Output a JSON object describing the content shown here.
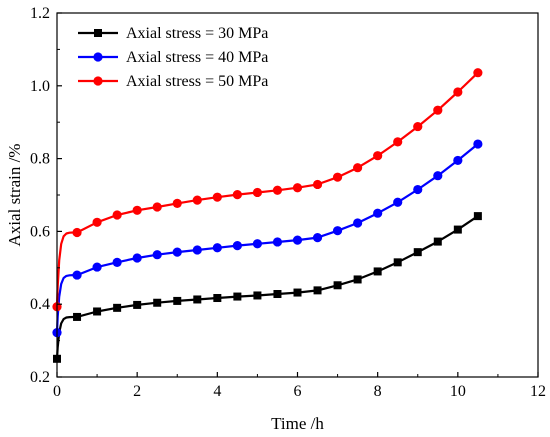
{
  "chart_data": {
    "type": "line",
    "xlabel": "Time /h",
    "ylabel": "Axial strain /%",
    "xlim": [
      0,
      12
    ],
    "ylim": [
      0.2,
      1.2
    ],
    "xticks": [
      0,
      2,
      4,
      6,
      8,
      10,
      12
    ],
    "yticks": [
      0.2,
      0.4,
      0.6,
      0.8,
      1.0,
      1.2
    ],
    "xtick_labels": [
      "0",
      "2",
      "4",
      "6",
      "8",
      "10",
      "12"
    ],
    "ytick_labels": [
      "0.2",
      "0.4",
      "0.6",
      "0.8",
      "1.0",
      "1.2"
    ],
    "grid": false,
    "legend_position": "top-left",
    "series": [
      {
        "name": "Axial stress = 30 MPa",
        "color": "#000000",
        "marker": "square",
        "x": [
          0,
          0.5,
          1,
          1.5,
          2,
          2.5,
          3,
          3.5,
          4,
          4.5,
          5,
          5.5,
          6,
          6.5,
          7,
          7.5,
          8,
          8.5,
          9,
          9.5,
          10,
          10.5
        ],
        "y": [
          0.25,
          0.365,
          0.38,
          0.39,
          0.398,
          0.404,
          0.409,
          0.413,
          0.417,
          0.421,
          0.424,
          0.428,
          0.432,
          0.438,
          0.452,
          0.468,
          0.49,
          0.515,
          0.543,
          0.572,
          0.605,
          0.642
        ]
      },
      {
        "name": "Axial stress = 40 MPa",
        "color": "#0000ff",
        "marker": "circle",
        "x": [
          0,
          0.5,
          1,
          1.5,
          2,
          2.5,
          3,
          3.5,
          4,
          4.5,
          5,
          5.5,
          6,
          6.5,
          7,
          7.5,
          8,
          8.5,
          9,
          9.5,
          10,
          10.5
        ],
        "y": [
          0.322,
          0.48,
          0.502,
          0.515,
          0.527,
          0.536,
          0.543,
          0.549,
          0.555,
          0.561,
          0.566,
          0.571,
          0.576,
          0.583,
          0.602,
          0.623,
          0.65,
          0.68,
          0.715,
          0.753,
          0.795,
          0.84
        ]
      },
      {
        "name": "Axial stress = 50 MPa",
        "color": "#ff0000",
        "marker": "circle",
        "x": [
          0,
          0.5,
          1,
          1.5,
          2,
          2.5,
          3,
          3.5,
          4,
          4.5,
          5,
          5.5,
          6,
          6.5,
          7,
          7.5,
          8,
          8.5,
          9,
          9.5,
          10,
          10.5
        ],
        "y": [
          0.393,
          0.597,
          0.625,
          0.645,
          0.658,
          0.667,
          0.677,
          0.686,
          0.694,
          0.701,
          0.707,
          0.713,
          0.72,
          0.729,
          0.749,
          0.775,
          0.808,
          0.846,
          0.888,
          0.933,
          0.983,
          1.036
        ]
      }
    ]
  }
}
